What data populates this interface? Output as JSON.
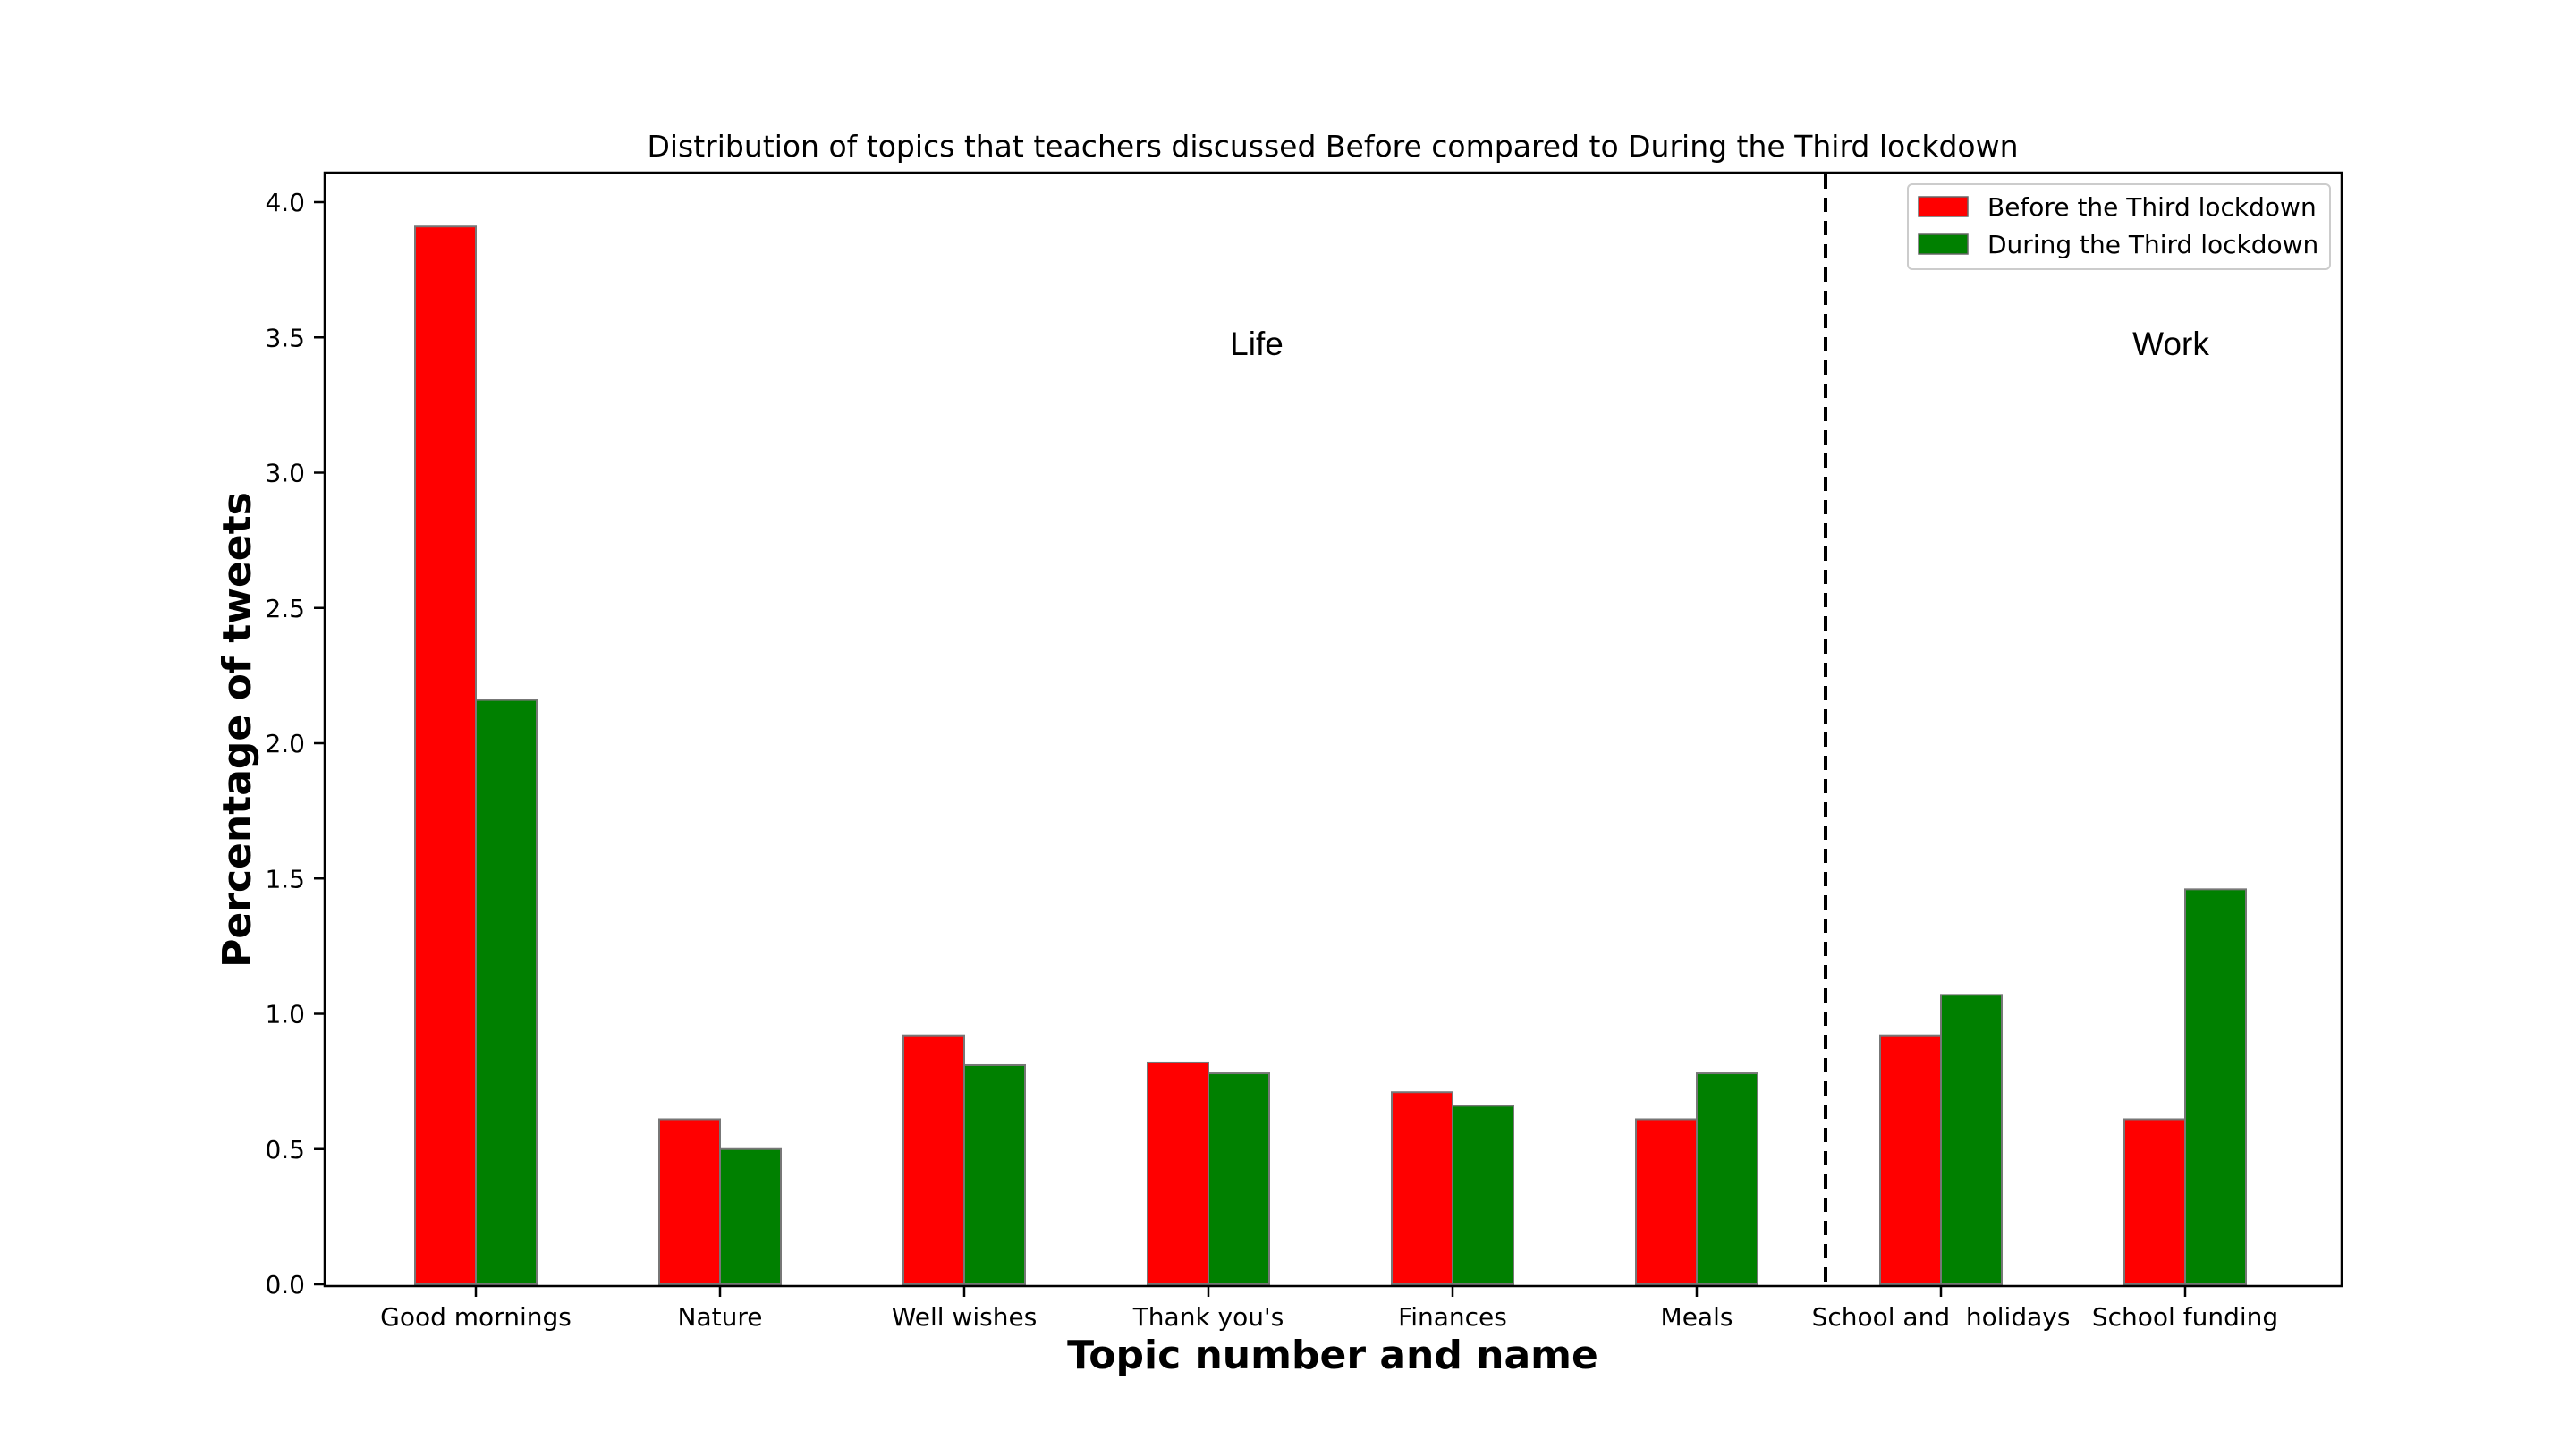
{
  "chart_data": {
    "type": "bar",
    "title": "Distribution of topics that teachers discussed Before compared to During the Third lockdown",
    "xlabel": "Topic number and name",
    "ylabel": "Percentage of tweets",
    "categories": [
      "Good mornings",
      "Nature",
      "Well wishes",
      "Thank you's",
      "Finances",
      "Meals",
      "School and  holidays",
      "School funding"
    ],
    "series": [
      {
        "name": "Before the Third lockdown",
        "color": "#ff0000",
        "values": [
          3.91,
          0.61,
          0.92,
          0.82,
          0.71,
          0.61,
          0.92,
          0.61
        ]
      },
      {
        "name": "During the Third lockdown",
        "color": "#008000",
        "values": [
          2.16,
          0.5,
          0.81,
          0.78,
          0.66,
          0.78,
          1.07,
          1.46
        ]
      }
    ],
    "ylim": [
      0,
      4.1
    ],
    "yticks": [
      0.0,
      0.5,
      1.0,
      1.5,
      2.0,
      2.5,
      3.0,
      3.5,
      4.0
    ],
    "legend_position": "top-right",
    "grid": false,
    "regions": [
      {
        "label": "Life"
      },
      {
        "label": "Work"
      }
    ]
  }
}
